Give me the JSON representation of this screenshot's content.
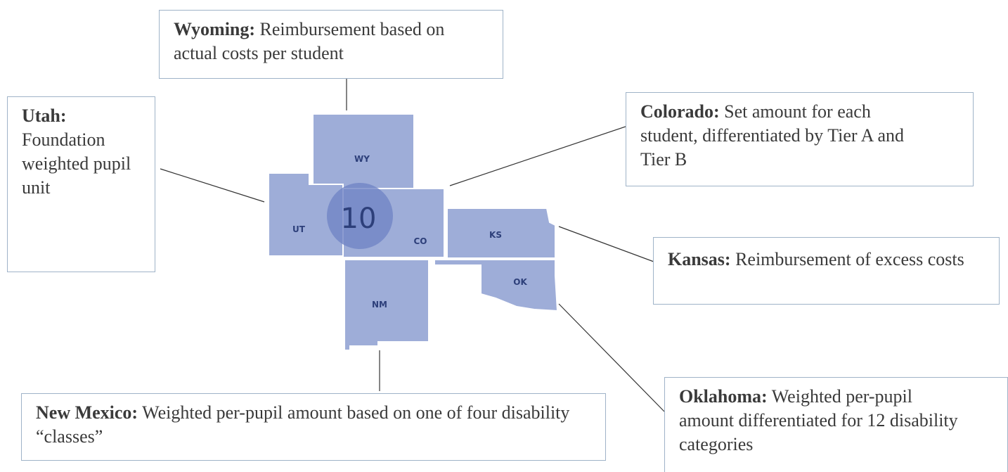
{
  "region_label": "10",
  "states": [
    {
      "abbr": "WY"
    },
    {
      "abbr": "UT"
    },
    {
      "abbr": "CO"
    },
    {
      "abbr": "KS"
    },
    {
      "abbr": "NM"
    },
    {
      "abbr": "OK"
    }
  ],
  "callouts": [
    {
      "name": "Wyoming:",
      "text": "Reimbursement based on actual costs per student"
    },
    {
      "name": "Utah:",
      "text": "Foundation weighted pupil unit"
    },
    {
      "name": "Colorado:",
      "text": "Set amount for each student, differentiated by Tier A and Tier B"
    },
    {
      "name": "Kansas:",
      "text": "Reimbursement of excess costs"
    },
    {
      "name": "New Mexico:",
      "text": "Weighted per-pupil amount based on one of four disability “classes”"
    },
    {
      "name": "Oklahoma:",
      "text": "Weighted per-pupil amount differentiated for 12 disability categories"
    }
  ]
}
